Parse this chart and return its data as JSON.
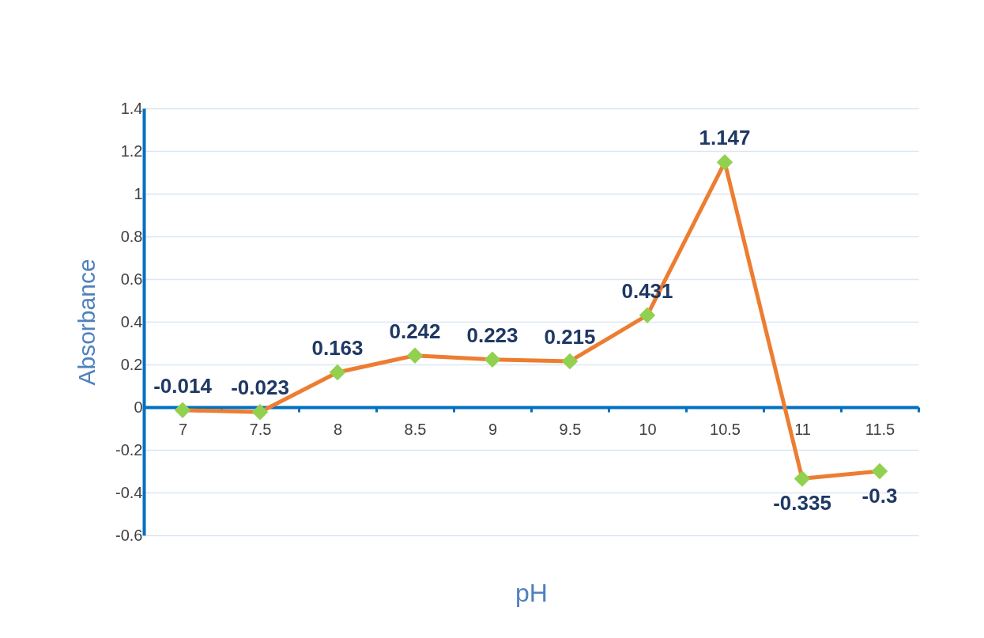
{
  "chart_data": {
    "type": "line",
    "xlabel": "pH",
    "ylabel": "Absorbance",
    "categories": [
      "7",
      "7.5",
      "8",
      "8.5",
      "9",
      "9.5",
      "10",
      "10.5",
      "11",
      "11.5"
    ],
    "series": [
      {
        "color": "#ed7d31",
        "values": [
          -0.014,
          -0.023,
          0.163,
          0.242,
          0.223,
          0.215,
          0.431,
          1.147,
          -0.335,
          -0.3
        ]
      }
    ],
    "ylim": [
      -0.6,
      1.4
    ],
    "yticks": [
      -0.6,
      -0.4,
      -0.2,
      0,
      0.2,
      0.4,
      0.6,
      0.8,
      1,
      1.2,
      1.4
    ],
    "grid": "y",
    "marker": "diamond",
    "line_style": "solid",
    "data_labels": true
  }
}
